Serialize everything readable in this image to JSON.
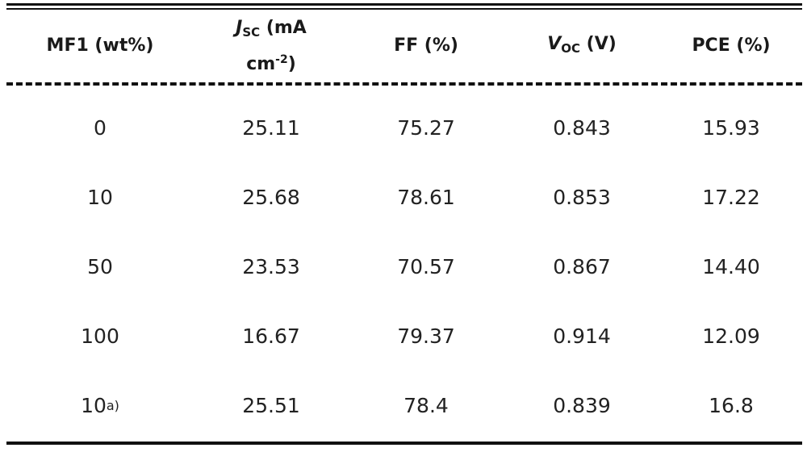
{
  "table": {
    "headers": {
      "mf1": "MF1 (wt%)",
      "jsc_symbol": "J",
      "jsc_sub": "SC",
      "jsc_unit_line1": " (mA",
      "jsc_unit_line2": "cm",
      "jsc_unit_sup": "-2",
      "jsc_unit_close": ")",
      "ff": "FF (%)",
      "voc_symbol": "V",
      "voc_sub": "OC",
      "voc_unit": " (V)",
      "pce": "PCE (%)"
    },
    "rows": [
      {
        "mf1": "0",
        "mf1_note": "",
        "jsc": "25.11",
        "ff": "75.27",
        "voc": "0.843",
        "pce": "15.93"
      },
      {
        "mf1": "10",
        "mf1_note": "",
        "jsc": "25.68",
        "ff": "78.61",
        "voc": "0.853",
        "pce": "17.22"
      },
      {
        "mf1": "50",
        "mf1_note": "",
        "jsc": "23.53",
        "ff": "70.57",
        "voc": "0.867",
        "pce": "14.40"
      },
      {
        "mf1": "100",
        "mf1_note": "",
        "jsc": "16.67",
        "ff": "79.37",
        "voc": "0.914",
        "pce": "12.09"
      },
      {
        "mf1": "10",
        "mf1_note": "a)",
        "jsc": "25.51",
        "ff": "78.4",
        "voc": "0.839",
        "pce": "16.8"
      }
    ]
  }
}
